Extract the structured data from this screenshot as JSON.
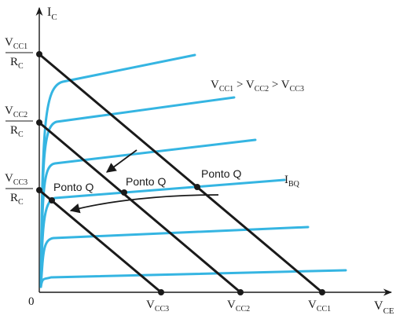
{
  "axes": {
    "y_main": "I",
    "y_sub": "C",
    "x_main": "V",
    "x_sub": "CE",
    "origin": "0"
  },
  "y_labels": [
    {
      "num_main": "V",
      "num_sub": "CC1",
      "den_main": "R",
      "den_sub": "C"
    },
    {
      "num_main": "V",
      "num_sub": "CC2",
      "den_main": "R",
      "den_sub": "C"
    },
    {
      "num_main": "V",
      "num_sub": "CC3",
      "den_main": "R",
      "den_sub": "C"
    }
  ],
  "x_labels": [
    {
      "main": "V",
      "sub": "CC3"
    },
    {
      "main": "V",
      "sub": "CC2"
    },
    {
      "main": "V",
      "sub": "CC1"
    }
  ],
  "relation": {
    "t1": "V",
    "s1": "CC1",
    "op1": " > ",
    "t2": "V",
    "s2": "CC2",
    "op2": " > ",
    "t3": "V",
    "s3": "CC3"
  },
  "ibq": {
    "main": "I",
    "sub": "BQ"
  },
  "q_points": [
    "Ponto Q",
    "Ponto Q",
    "Ponto Q"
  ],
  "colors": {
    "curves": "#35b5e2",
    "lines": "#1a1a1a"
  }
}
